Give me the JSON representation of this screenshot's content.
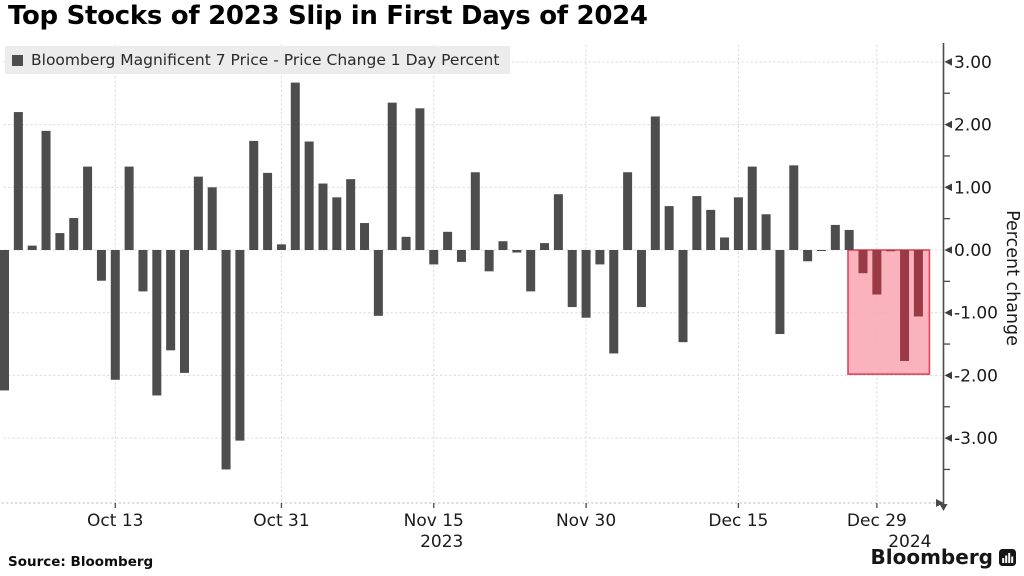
{
  "title": "Top Stocks of 2023 Slip in First Days of 2024",
  "legend": {
    "label": "Bloomberg Magnificent 7 Price - Price Change 1 Day Percent",
    "swatch_color": "#4d4d4d"
  },
  "source_label": "Source: Bloomberg",
  "branding": {
    "logo_text": "Bloomberg",
    "terminal_icon": "bloomberg-terminal-icon"
  },
  "chart_data": {
    "type": "bar",
    "title": "Top Stocks of 2023 Slip in First Days of 2024",
    "series_label": "Bloomberg Magnificent 7 Price - Price Change 1 Day Percent",
    "xlabel": "",
    "ylabel": "Percent change",
    "ylim": [
      -4.05,
      3.35
    ],
    "grid": true,
    "legend_position": "top-left",
    "y_major_ticks": [
      {
        "value": 3,
        "label": "3.00"
      },
      {
        "value": 2,
        "label": "2.00"
      },
      {
        "value": 1,
        "label": "1.00"
      },
      {
        "value": 0,
        "label": "0.00"
      },
      {
        "value": -1,
        "label": "-1.00"
      },
      {
        "value": -2,
        "label": "-2.00"
      },
      {
        "value": -3,
        "label": "-3.00"
      }
    ],
    "y_minor_ticks": [
      2.5,
      1.5,
      0.5,
      -0.5,
      -1.5,
      -2.5,
      -3.5
    ],
    "x_ticks": [
      {
        "index": 8,
        "label": "Oct 13"
      },
      {
        "index": 20,
        "label": "Oct 31"
      },
      {
        "index": 31,
        "label": "Nov 15",
        "year_label": "2023"
      },
      {
        "index": 42,
        "label": "Nov 30"
      },
      {
        "index": 53,
        "label": "Dec 15"
      },
      {
        "index": 63,
        "label": "Dec 29",
        "year_label": "2024"
      }
    ],
    "values": [
      -2.24,
      2.2,
      0.07,
      1.9,
      0.27,
      0.51,
      1.33,
      -0.49,
      -2.07,
      1.33,
      -0.66,
      -2.32,
      -1.6,
      -1.96,
      1.17,
      1.0,
      -3.5,
      -3.04,
      1.74,
      1.23,
      0.09,
      2.67,
      1.73,
      1.06,
      0.84,
      1.13,
      0.43,
      -1.05,
      2.35,
      0.21,
      2.26,
      -0.23,
      0.29,
      -0.19,
      1.24,
      -0.34,
      0.14,
      -0.04,
      -0.66,
      0.11,
      0.89,
      -0.91,
      -1.08,
      -0.23,
      -1.65,
      1.24,
      -0.91,
      2.13,
      0.7,
      -1.47,
      0.86,
      0.64,
      0.2,
      0.84,
      1.33,
      0.57,
      -1.34,
      1.35,
      -0.18,
      -0.01,
      0.4,
      0.32,
      -0.37,
      -0.71,
      -0.02,
      -1.77,
      -1.06
    ],
    "highlight": {
      "start_index": 62,
      "end_index": 66,
      "top_value": 0,
      "bottom_value": -1.98
    },
    "colors": {
      "bar": "#4d4d4d",
      "highlight_bar": "#993a45",
      "highlight_fill": "#f9a7b3",
      "highlight_border": "#e4435a",
      "grid": "#d9d9d9",
      "axis": "#4a4a4a",
      "tick_text": "#1a1a1a"
    }
  }
}
